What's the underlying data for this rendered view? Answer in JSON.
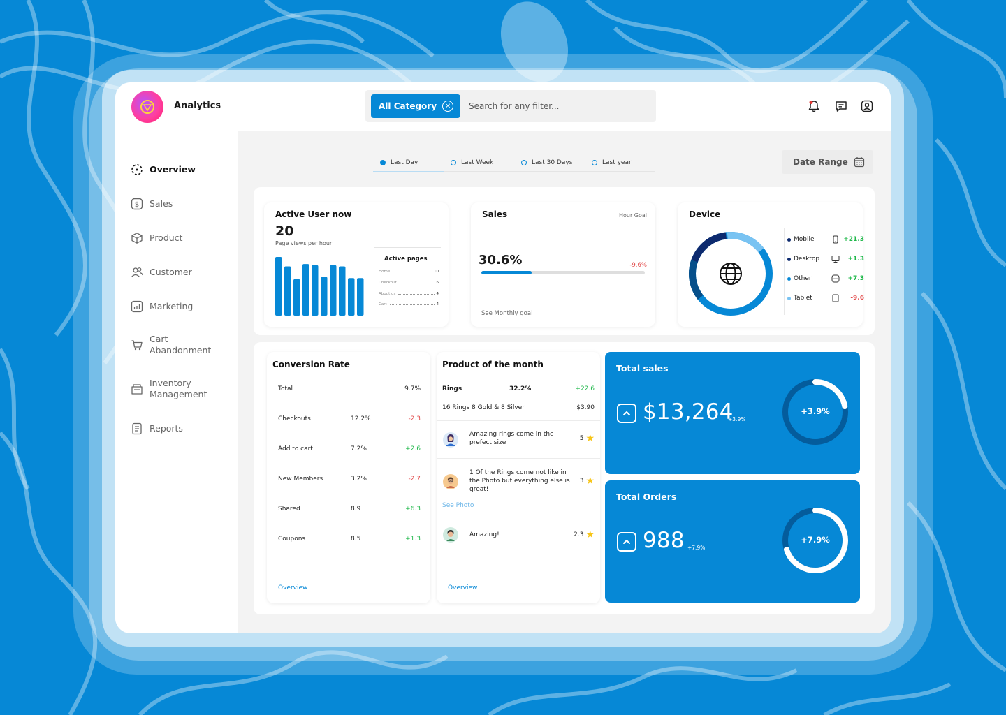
{
  "app": {
    "title": "Analytics"
  },
  "search": {
    "category": "All Category",
    "placeholder": "Search for any filter..."
  },
  "sidebar": {
    "items": [
      {
        "label": "Overview"
      },
      {
        "label": "Sales"
      },
      {
        "label": "Product"
      },
      {
        "label": "Customer"
      },
      {
        "label": "Marketing"
      },
      {
        "label": "Cart Abandonment"
      },
      {
        "label": "Inventory Management"
      },
      {
        "label": "Reports"
      }
    ]
  },
  "range_tabs": [
    "Last Day",
    "Last Week",
    "Last 30 Days",
    "Last year"
  ],
  "date_range": "Date Range",
  "active_users": {
    "title": "Active User now",
    "value": "20",
    "subtitle": "Page views per hour",
    "bars": [
      100,
      84,
      62,
      88,
      86,
      66,
      86,
      84,
      64,
      64
    ],
    "active_pages_title": "Active pages",
    "active_pages": [
      {
        "name": "Home",
        "value": "10"
      },
      {
        "name": "Checkout",
        "value": "6"
      },
      {
        "name": "About us",
        "value": "4"
      },
      {
        "name": "Cart",
        "value": "4"
      }
    ]
  },
  "sales": {
    "title": "Sales",
    "hour_goal": "Hour Goal",
    "percent": "30.6%",
    "progress": 0.306,
    "change": "-9.6%",
    "see_goal": "See Monthly goal"
  },
  "device": {
    "title": "Device",
    "items": [
      {
        "name": "Mobile",
        "icon": "phone-icon",
        "change": "+21.3",
        "color": "#0d2a6e",
        "trend": "pos"
      },
      {
        "name": "Desktop",
        "icon": "desktop-icon",
        "change": "+1.3",
        "color": "#0d2a6e",
        "trend": "pos"
      },
      {
        "name": "Other",
        "icon": "other-icon",
        "change": "+7.3",
        "color": "#0688d6",
        "trend": "pos"
      },
      {
        "name": "Tablet",
        "icon": "tablet-icon",
        "change": "-9.6",
        "color": "#79c3f2",
        "trend": "neg"
      }
    ]
  },
  "conversion": {
    "title": "Conversion Rate",
    "total_label": "Total",
    "total_value": "9.7%",
    "rows": [
      {
        "name": "Checkouts",
        "value": "12.2%",
        "change": "-2.3",
        "trend": "neg"
      },
      {
        "name": "Add to cart",
        "value": "7.2%",
        "change": "+2.6",
        "trend": "pos"
      },
      {
        "name": "New Members",
        "value": "3.2%",
        "change": "-2.7",
        "trend": "neg"
      },
      {
        "name": "Shared",
        "value": "8.9",
        "change": "+6.3",
        "trend": "pos"
      },
      {
        "name": "Coupons",
        "value": "8.5",
        "change": "+1.3",
        "trend": "pos"
      }
    ],
    "link": "Overview"
  },
  "product": {
    "title": "Product of the month",
    "name": "Rings",
    "share": "32.2%",
    "change": "+22.6",
    "desc": "16 Rings 8 Gold & 8 Silver.",
    "price": "$3.90",
    "reviews": [
      {
        "text": "Amazing rings come in the prefect size",
        "rating": "5"
      },
      {
        "text": "1 Of the Rings come not like in the Photo but everything else is great!",
        "rating": "3"
      },
      {
        "text": "Amazing!",
        "rating": "2.3"
      }
    ],
    "see_photo": "See Photo",
    "link": "Overview"
  },
  "total_sales": {
    "title": "Total sales",
    "value": "$13,264",
    "change": "+3.9%",
    "ring_label": "+3.9%",
    "ring_fraction": 0.22
  },
  "total_orders": {
    "title": "Total Orders",
    "value": "988",
    "change": "+7.9%",
    "ring_label": "+7.9%",
    "ring_fraction": 0.7
  }
}
